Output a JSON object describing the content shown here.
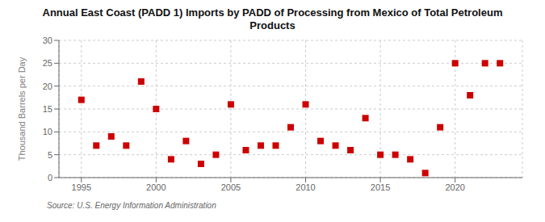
{
  "chart_data": {
    "type": "scatter",
    "title": "Annual East Coast (PADD 1) Imports by PADD of Processing from Mexico of Total Petroleum\nProducts",
    "y_label": "Thousand Barrels per Day",
    "annotations": [
      "Source: U.S. Energy Information Administration"
    ],
    "x": [
      1995,
      1996,
      1997,
      1998,
      1999,
      2000,
      2001,
      2002,
      2003,
      2004,
      2005,
      2006,
      2007,
      2008,
      2009,
      2010,
      2011,
      2012,
      2013,
      2014,
      2015,
      2016,
      2017,
      2018,
      2019,
      2020,
      2021,
      2022,
      2023
    ],
    "values": [
      17,
      7,
      9,
      7,
      21,
      15,
      4,
      8,
      3,
      5,
      16,
      6,
      7,
      7,
      11,
      16,
      8,
      7,
      6,
      13,
      5,
      5,
      4,
      1,
      11,
      25,
      18,
      25,
      25
    ],
    "color": "#cc0000",
    "marker": "square",
    "xlim": [
      1993.5,
      2024.5
    ],
    "xticks": [
      1995,
      2000,
      2005,
      2010,
      2015,
      2020
    ],
    "ylim": [
      0,
      30
    ],
    "yticks": [
      0,
      5,
      10,
      15,
      20,
      25,
      30
    ],
    "grid": true
  }
}
